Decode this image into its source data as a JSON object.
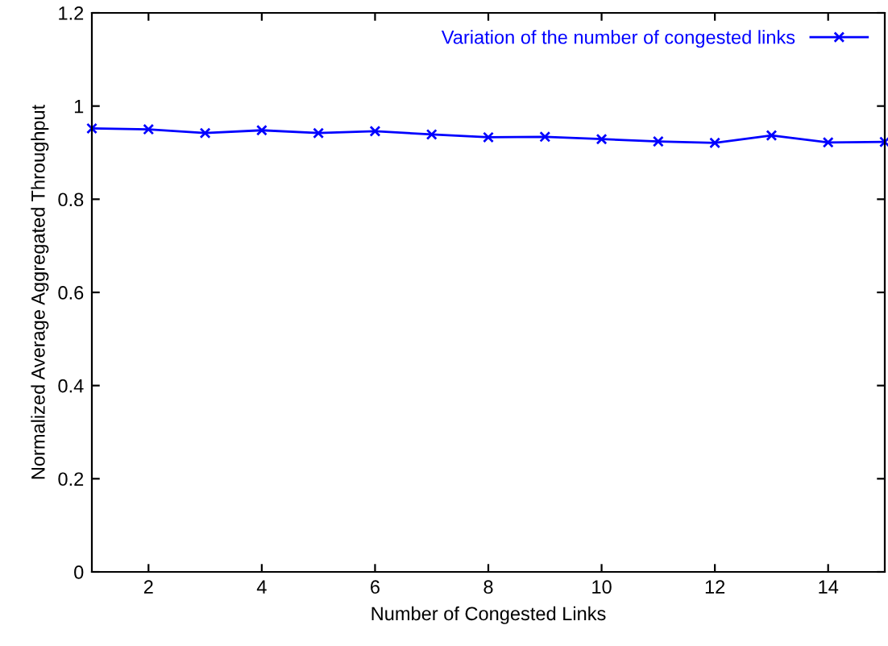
{
  "chart_data": {
    "type": "line",
    "xlabel": "Number of Congested Links",
    "ylabel": "Normalized Average Aggregated Throughput",
    "x": [
      1,
      2,
      3,
      4,
      5,
      6,
      7,
      8,
      9,
      10,
      11,
      12,
      13,
      14,
      15
    ],
    "series": [
      {
        "name": "Variation of the number of congested links",
        "color": "#0000ff",
        "values": [
          0.952,
          0.95,
          0.942,
          0.948,
          0.942,
          0.946,
          0.939,
          0.933,
          0.934,
          0.929,
          0.924,
          0.921,
          0.937,
          0.922,
          0.923
        ]
      }
    ],
    "xlim": [
      1,
      15
    ],
    "xticks": [
      2,
      4,
      6,
      8,
      10,
      12,
      14
    ],
    "ylim": [
      0,
      1.2
    ],
    "yticks": [
      0,
      0.2,
      0.4,
      0.6,
      0.8,
      1,
      1.2
    ],
    "marker": "cross",
    "line_style": "solid",
    "grid": false,
    "legend": "top right"
  }
}
